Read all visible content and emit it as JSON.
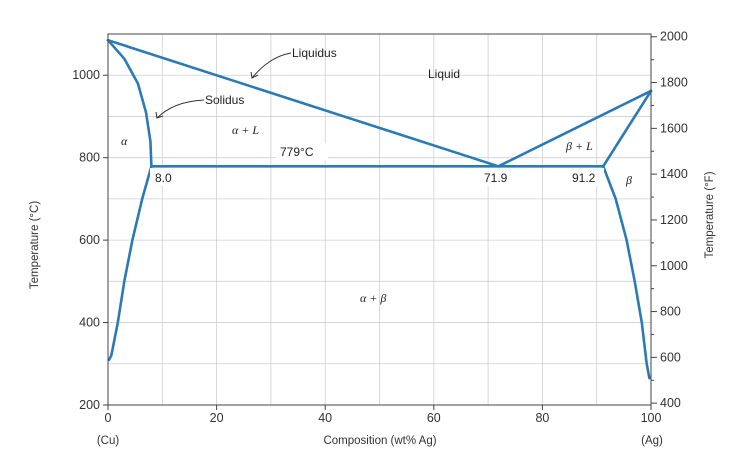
{
  "chart_data": {
    "type": "line",
    "title": "",
    "xlabel": "Composition (wt% Ag)",
    "ylabel": "Temperature (°C)",
    "y2label": "Temperature (°F)",
    "xlim": [
      0,
      100
    ],
    "ylim": [
      200,
      1100
    ],
    "y2lim": [
      400,
      2000
    ],
    "grid": true,
    "x_ticks": [
      "0",
      "20",
      "40",
      "60",
      "80",
      "100"
    ],
    "y_ticks": [
      "200",
      "400",
      "600",
      "800",
      "1000"
    ],
    "y2_ticks": [
      "400",
      "600",
      "800",
      "1000",
      "1200",
      "1400",
      "1600",
      "1800",
      "2000"
    ],
    "x_end_labels": {
      "left": "(Cu)",
      "right": "(Ag)"
    },
    "series": [
      {
        "key": "liquidus_cu",
        "values": [
          [
            0,
            1085
          ],
          [
            71.9,
            779
          ]
        ]
      },
      {
        "key": "liquidus_ag",
        "values": [
          [
            71.9,
            779
          ],
          [
            100,
            962
          ]
        ]
      },
      {
        "key": "solidus_alpha",
        "values": [
          [
            0,
            1085
          ],
          [
            3,
            1040
          ],
          [
            5.5,
            980
          ],
          [
            7,
            910
          ],
          [
            7.8,
            840
          ],
          [
            8.0,
            779
          ]
        ]
      },
      {
        "key": "solidus_beta",
        "values": [
          [
            91.2,
            779
          ],
          [
            100,
            962
          ]
        ]
      },
      {
        "key": "eutectic",
        "values": [
          [
            8.0,
            779
          ],
          [
            91.2,
            779
          ]
        ]
      },
      {
        "key": "solvus_alpha",
        "values": [
          [
            8.0,
            779
          ],
          [
            6.3,
            700
          ],
          [
            4.5,
            600
          ],
          [
            3,
            500
          ],
          [
            1.8,
            400
          ],
          [
            0.6,
            320
          ],
          [
            0.2,
            310
          ]
        ]
      },
      {
        "key": "solvus_beta",
        "values": [
          [
            91.2,
            779
          ],
          [
            93.5,
            700
          ],
          [
            95.5,
            600
          ],
          [
            97,
            500
          ],
          [
            98.3,
            400
          ],
          [
            99.2,
            300
          ],
          [
            99.7,
            265
          ]
        ]
      }
    ],
    "annotations": {
      "liquidus": "Liquidus",
      "solidus": "Solidus",
      "liquid": "Liquid",
      "alpha": "α",
      "alpha_l": "α + L",
      "beta_l": "β + L",
      "beta": "β",
      "alpha_beta": "α + β",
      "eutectic_temp": "779°C",
      "c_alpha": "8.0",
      "c_e": "71.9",
      "c_beta": "91.2"
    }
  }
}
